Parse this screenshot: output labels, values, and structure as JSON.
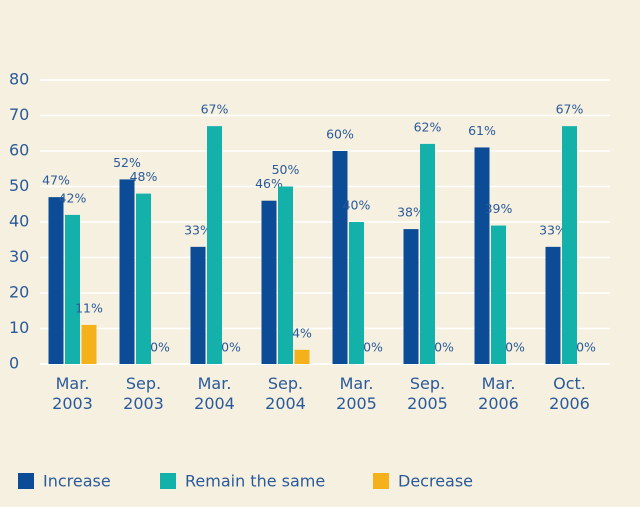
{
  "chart_data": {
    "type": "bar",
    "categories": [
      "Mar. 2003",
      "Sep. 2003",
      "Mar. 2004",
      "Sep. 2004",
      "Mar. 2005",
      "Sep. 2005",
      "Mar. 2006",
      "Oct. 2006"
    ],
    "series": [
      {
        "name": "Increase",
        "color": "#0c4b96",
        "values": [
          47,
          52,
          33,
          46,
          60,
          38,
          61,
          33
        ],
        "value_labels": [
          "47%",
          "52%",
          "33%",
          "46%",
          "60%",
          "38%",
          "61%",
          "33%"
        ]
      },
      {
        "name": "Remain the same",
        "color": "#13b1aa",
        "values": [
          42,
          48,
          67,
          50,
          40,
          62,
          39,
          67
        ],
        "value_labels": [
          "42%",
          "48%",
          "67%",
          "50%",
          "40%",
          "62%",
          "39%",
          "67%"
        ]
      },
      {
        "name": "Decrease",
        "color": "#f5b11b",
        "values": [
          11,
          0,
          0,
          4,
          0,
          0,
          0,
          0
        ],
        "value_labels": [
          "11%",
          "0%",
          "0%",
          "4%",
          "0%",
          "0%",
          "0%",
          "0%"
        ]
      }
    ],
    "ylim": [
      0,
      80
    ],
    "yticks": [
      0,
      10,
      20,
      30,
      40,
      50,
      60,
      70,
      80
    ],
    "grid": true,
    "legend": "bottom"
  }
}
